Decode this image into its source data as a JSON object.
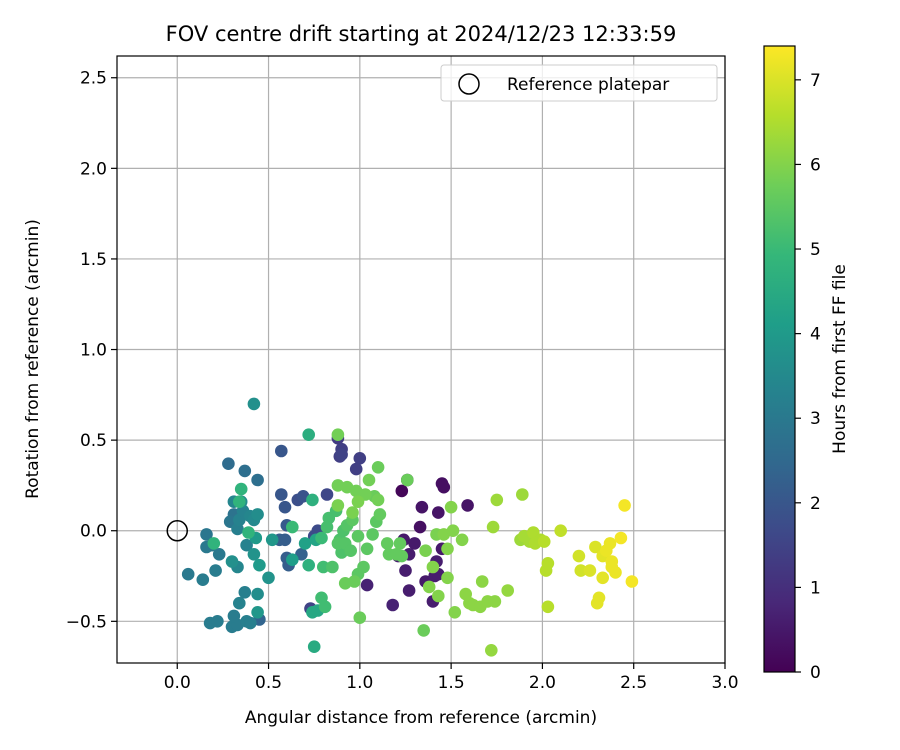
{
  "chart_data": {
    "type": "scatter",
    "title": "FOV centre drift starting at 2024/12/23 12:33:59",
    "xlabel": "Angular distance from reference (arcmin)",
    "ylabel": "Rotation from reference (arcmin)",
    "xlim": [
      -0.33,
      3.0
    ],
    "ylim": [
      -0.73,
      2.62
    ],
    "x_ticks": [
      0.0,
      0.5,
      1.0,
      1.5,
      2.0,
      2.5,
      3.0
    ],
    "x_tick_labels": [
      "0.0",
      "0.5",
      "1.0",
      "1.5",
      "2.0",
      "2.5",
      "3.0"
    ],
    "y_ticks": [
      -0.5,
      0.0,
      0.5,
      1.0,
      1.5,
      2.0,
      2.5
    ],
    "y_tick_labels": [
      "−0.5",
      "0.0",
      "0.5",
      "1.0",
      "1.5",
      "2.0",
      "2.5"
    ],
    "grid": true,
    "legend": {
      "placement": "upper-right",
      "entries": [
        "Reference platepar"
      ]
    },
    "reference_point": {
      "x": 0.0,
      "y": 0.0
    },
    "colorbar": {
      "label": "Hours from first FF file",
      "range": [
        0,
        7.4
      ],
      "ticks": [
        0,
        1,
        2,
        3,
        4,
        5,
        6,
        7
      ],
      "tick_labels": [
        "0",
        "1",
        "2",
        "3",
        "4",
        "5",
        "6",
        "7"
      ],
      "colormap": "viridis",
      "colors": [
        "#440154",
        "#482878",
        "#3e4989",
        "#31688e",
        "#26828e",
        "#1f9e89",
        "#35b779",
        "#6ece58",
        "#b5de2b",
        "#fde725"
      ]
    },
    "points": [
      {
        "x": 1.23,
        "y": 0.22,
        "t": 0.1
      },
      {
        "x": 1.26,
        "y": 0.28,
        "t": 0.2
      },
      {
        "x": 1.45,
        "y": 0.26,
        "t": 0.3
      },
      {
        "x": 1.46,
        "y": 0.24,
        "t": 0.3
      },
      {
        "x": 1.34,
        "y": 0.13,
        "t": 0.4
      },
      {
        "x": 1.43,
        "y": 0.1,
        "t": 0.4
      },
      {
        "x": 1.59,
        "y": 0.14,
        "t": 0.4
      },
      {
        "x": 1.33,
        "y": 0.02,
        "t": 0.3
      },
      {
        "x": 1.24,
        "y": -0.05,
        "t": 0.5
      },
      {
        "x": 1.3,
        "y": -0.07,
        "t": 0.5
      },
      {
        "x": 1.27,
        "y": -0.13,
        "t": 0.6
      },
      {
        "x": 1.21,
        "y": -0.14,
        "t": 0.6
      },
      {
        "x": 1.25,
        "y": -0.22,
        "t": 0.6
      },
      {
        "x": 1.36,
        "y": -0.28,
        "t": 0.5
      },
      {
        "x": 1.41,
        "y": -0.25,
        "t": 0.6
      },
      {
        "x": 1.27,
        "y": -0.33,
        "t": 0.6
      },
      {
        "x": 1.4,
        "y": -0.39,
        "t": 0.6
      },
      {
        "x": 1.18,
        "y": -0.41,
        "t": 0.7
      },
      {
        "x": 1.04,
        "y": -0.3,
        "t": 0.7
      },
      {
        "x": 1.43,
        "y": -0.24,
        "t": 0.6
      },
      {
        "x": 1.45,
        "y": -0.1,
        "t": 0.5
      },
      {
        "x": 1.42,
        "y": -0.17,
        "t": 0.6
      },
      {
        "x": 1.0,
        "y": 0.4,
        "t": 1.4
      },
      {
        "x": 0.98,
        "y": 0.34,
        "t": 1.4
      },
      {
        "x": 0.88,
        "y": 0.51,
        "t": 1.3
      },
      {
        "x": 0.9,
        "y": 0.45,
        "t": 1.4
      },
      {
        "x": 0.89,
        "y": 0.41,
        "t": 1.4
      },
      {
        "x": 0.9,
        "y": 0.42,
        "t": 1.5
      },
      {
        "x": 0.73,
        "y": -0.43,
        "t": 1.5
      },
      {
        "x": 0.82,
        "y": 0.2,
        "t": 1.6
      },
      {
        "x": 0.77,
        "y": 0.0,
        "t": 1.7
      },
      {
        "x": 0.75,
        "y": -0.03,
        "t": 1.7
      },
      {
        "x": 0.57,
        "y": 0.44,
        "t": 2.0
      },
      {
        "x": 0.57,
        "y": 0.2,
        "t": 2.0
      },
      {
        "x": 0.66,
        "y": 0.17,
        "t": 1.8
      },
      {
        "x": 0.69,
        "y": 0.19,
        "t": 1.9
      },
      {
        "x": 0.59,
        "y": 0.13,
        "t": 2.0
      },
      {
        "x": 0.6,
        "y": 0.03,
        "t": 2.1
      },
      {
        "x": 0.56,
        "y": -0.05,
        "t": 2.2
      },
      {
        "x": 0.59,
        "y": -0.05,
        "t": 2.2
      },
      {
        "x": 0.6,
        "y": -0.15,
        "t": 2.2
      },
      {
        "x": 0.61,
        "y": -0.19,
        "t": 2.2
      },
      {
        "x": 0.68,
        "y": -0.13,
        "t": 2.3
      },
      {
        "x": 0.45,
        "y": -0.49,
        "t": 2.4
      },
      {
        "x": 0.28,
        "y": 0.37,
        "t": 2.6
      },
      {
        "x": 0.37,
        "y": 0.33,
        "t": 2.7
      },
      {
        "x": 0.44,
        "y": 0.28,
        "t": 2.7
      },
      {
        "x": 0.31,
        "y": 0.09,
        "t": 2.8
      },
      {
        "x": 0.29,
        "y": 0.05,
        "t": 2.9
      },
      {
        "x": 0.16,
        "y": -0.02,
        "t": 2.9
      },
      {
        "x": 0.23,
        "y": -0.13,
        "t": 3.0
      },
      {
        "x": 0.19,
        "y": -0.08,
        "t": 3.0
      },
      {
        "x": 0.16,
        "y": -0.09,
        "t": 3.0
      },
      {
        "x": 0.06,
        "y": -0.24,
        "t": 3.0
      },
      {
        "x": 0.14,
        "y": -0.27,
        "t": 3.1
      },
      {
        "x": 0.21,
        "y": -0.22,
        "t": 3.1
      },
      {
        "x": 0.18,
        "y": -0.51,
        "t": 3.1
      },
      {
        "x": 0.22,
        "y": -0.5,
        "t": 3.1
      },
      {
        "x": 0.3,
        "y": -0.53,
        "t": 3.1
      },
      {
        "x": 0.33,
        "y": -0.52,
        "t": 3.1
      },
      {
        "x": 0.31,
        "y": -0.47,
        "t": 3.1
      },
      {
        "x": 0.38,
        "y": -0.5,
        "t": 3.2
      },
      {
        "x": 0.4,
        "y": -0.51,
        "t": 3.2
      },
      {
        "x": 0.34,
        "y": -0.4,
        "t": 3.3
      },
      {
        "x": 0.37,
        "y": -0.34,
        "t": 3.2
      },
      {
        "x": 0.33,
        "y": 0.01,
        "t": 3.2
      },
      {
        "x": 0.34,
        "y": 0.06,
        "t": 3.3
      },
      {
        "x": 0.38,
        "y": -0.08,
        "t": 3.3
      },
      {
        "x": 0.33,
        "y": -0.2,
        "t": 3.4
      },
      {
        "x": 0.36,
        "y": 0.11,
        "t": 3.3
      },
      {
        "x": 0.31,
        "y": 0.16,
        "t": 3.4
      },
      {
        "x": 0.4,
        "y": 0.08,
        "t": 3.4
      },
      {
        "x": 0.42,
        "y": 0.06,
        "t": 3.5
      },
      {
        "x": 0.44,
        "y": 0.09,
        "t": 3.6
      },
      {
        "x": 0.35,
        "y": 0.16,
        "t": 3.6
      },
      {
        "x": 0.44,
        "y": -0.35,
        "t": 3.6
      },
      {
        "x": 0.42,
        "y": 0.7,
        "t": 3.7
      },
      {
        "x": 0.3,
        "y": -0.17,
        "t": 3.7
      },
      {
        "x": 0.42,
        "y": -0.13,
        "t": 3.8
      },
      {
        "x": 0.5,
        "y": -0.26,
        "t": 3.8
      },
      {
        "x": 0.44,
        "y": -0.45,
        "t": 3.9
      },
      {
        "x": 0.52,
        "y": -0.05,
        "t": 3.9
      },
      {
        "x": 0.43,
        "y": -0.04,
        "t": 4.0
      },
      {
        "x": 0.45,
        "y": -0.19,
        "t": 4.0
      },
      {
        "x": 0.63,
        "y": -0.16,
        "t": 4.1
      },
      {
        "x": 0.7,
        "y": -0.07,
        "t": 4.2
      },
      {
        "x": 0.76,
        "y": -0.05,
        "t": 4.3
      },
      {
        "x": 0.74,
        "y": -0.45,
        "t": 4.4
      },
      {
        "x": 0.77,
        "y": -0.44,
        "t": 4.4
      },
      {
        "x": 0.75,
        "y": -0.64,
        "t": 4.5
      },
      {
        "x": 0.72,
        "y": 0.53,
        "t": 4.6
      },
      {
        "x": 0.72,
        "y": -0.19,
        "t": 4.7
      },
      {
        "x": 0.74,
        "y": 0.17,
        "t": 4.7
      },
      {
        "x": 0.35,
        "y": 0.23,
        "t": 4.8
      },
      {
        "x": 0.34,
        "y": 0.16,
        "t": 4.8
      },
      {
        "x": 0.39,
        "y": -0.01,
        "t": 4.8
      },
      {
        "x": 0.2,
        "y": -0.07,
        "t": 4.8
      },
      {
        "x": 0.63,
        "y": 0.02,
        "t": 5.0
      },
      {
        "x": 0.79,
        "y": -0.04,
        "t": 5.0
      },
      {
        "x": 0.81,
        "y": -0.42,
        "t": 5.1
      },
      {
        "x": 0.79,
        "y": -0.37,
        "t": 5.1
      },
      {
        "x": 0.8,
        "y": -0.2,
        "t": 5.1
      },
      {
        "x": 0.83,
        "y": 0.07,
        "t": 5.2
      },
      {
        "x": 0.82,
        "y": 0.02,
        "t": 5.2
      },
      {
        "x": 0.87,
        "y": 0.11,
        "t": 5.2
      },
      {
        "x": 0.9,
        "y": -0.12,
        "t": 5.3
      },
      {
        "x": 0.89,
        "y": -0.05,
        "t": 5.3
      },
      {
        "x": 0.91,
        "y": 0.0,
        "t": 5.3
      },
      {
        "x": 0.85,
        "y": -0.2,
        "t": 5.3
      },
      {
        "x": 0.88,
        "y": -0.07,
        "t": 5.4
      },
      {
        "x": 0.92,
        "y": -0.07,
        "t": 5.4
      },
      {
        "x": 0.93,
        "y": 0.03,
        "t": 5.4
      },
      {
        "x": 0.95,
        "y": -0.11,
        "t": 5.4
      },
      {
        "x": 0.96,
        "y": 0.06,
        "t": 5.5
      },
      {
        "x": 0.99,
        "y": -0.03,
        "t": 5.5
      },
      {
        "x": 0.99,
        "y": -0.24,
        "t": 5.5
      },
      {
        "x": 1.02,
        "y": -0.2,
        "t": 5.5
      },
      {
        "x": 1.04,
        "y": -0.1,
        "t": 5.5
      },
      {
        "x": 1.07,
        "y": -0.02,
        "t": 5.5
      },
      {
        "x": 1.09,
        "y": 0.05,
        "t": 5.5
      },
      {
        "x": 1.11,
        "y": 0.09,
        "t": 5.6
      },
      {
        "x": 1.15,
        "y": -0.07,
        "t": 5.6
      },
      {
        "x": 1.16,
        "y": -0.13,
        "t": 5.6
      },
      {
        "x": 1.2,
        "y": -0.13,
        "t": 5.6
      },
      {
        "x": 1.22,
        "y": -0.07,
        "t": 5.6
      },
      {
        "x": 1.23,
        "y": -0.14,
        "t": 5.6
      },
      {
        "x": 1.26,
        "y": 0.28,
        "t": 5.7
      },
      {
        "x": 1.35,
        "y": -0.55,
        "t": 5.7
      },
      {
        "x": 1.0,
        "y": -0.48,
        "t": 5.7
      },
      {
        "x": 0.97,
        "y": -0.28,
        "t": 5.7
      },
      {
        "x": 0.92,
        "y": -0.29,
        "t": 5.7
      },
      {
        "x": 1.1,
        "y": 0.35,
        "t": 5.7
      },
      {
        "x": 1.08,
        "y": 0.19,
        "t": 5.7
      },
      {
        "x": 1.1,
        "y": 0.17,
        "t": 5.8
      },
      {
        "x": 1.05,
        "y": 0.28,
        "t": 5.8
      },
      {
        "x": 1.03,
        "y": 0.2,
        "t": 5.8
      },
      {
        "x": 0.98,
        "y": 0.22,
        "t": 5.8
      },
      {
        "x": 0.93,
        "y": 0.24,
        "t": 5.8
      },
      {
        "x": 0.88,
        "y": 0.25,
        "t": 5.8
      },
      {
        "x": 0.88,
        "y": 0.53,
        "t": 5.8
      },
      {
        "x": 0.88,
        "y": 0.14,
        "t": 5.9
      },
      {
        "x": 0.96,
        "y": 0.1,
        "t": 5.9
      },
      {
        "x": 0.99,
        "y": 0.16,
        "t": 5.9
      },
      {
        "x": 1.42,
        "y": -0.02,
        "t": 5.9
      },
      {
        "x": 1.36,
        "y": -0.11,
        "t": 5.9
      },
      {
        "x": 1.48,
        "y": -0.1,
        "t": 6.0
      },
      {
        "x": 1.46,
        "y": -0.02,
        "t": 6.0
      },
      {
        "x": 1.51,
        "y": 0.0,
        "t": 6.0
      },
      {
        "x": 1.5,
        "y": 0.13,
        "t": 6.0
      },
      {
        "x": 1.56,
        "y": -0.05,
        "t": 6.0
      },
      {
        "x": 1.48,
        "y": -0.26,
        "t": 6.0
      },
      {
        "x": 1.4,
        "y": -0.2,
        "t": 6.0
      },
      {
        "x": 1.38,
        "y": -0.31,
        "t": 6.0
      },
      {
        "x": 1.43,
        "y": -0.36,
        "t": 6.0
      },
      {
        "x": 1.52,
        "y": -0.45,
        "t": 6.0
      },
      {
        "x": 1.58,
        "y": -0.35,
        "t": 6.1
      },
      {
        "x": 1.6,
        "y": -0.4,
        "t": 6.1
      },
      {
        "x": 1.62,
        "y": -0.41,
        "t": 6.1
      },
      {
        "x": 1.66,
        "y": -0.42,
        "t": 6.1
      },
      {
        "x": 1.7,
        "y": -0.39,
        "t": 6.1
      },
      {
        "x": 1.74,
        "y": -0.39,
        "t": 6.1
      },
      {
        "x": 1.67,
        "y": -0.28,
        "t": 6.1
      },
      {
        "x": 1.72,
        "y": -0.66,
        "t": 6.2
      },
      {
        "x": 1.81,
        "y": -0.33,
        "t": 6.2
      },
      {
        "x": 1.75,
        "y": 0.17,
        "t": 6.3
      },
      {
        "x": 1.73,
        "y": 0.02,
        "t": 6.3
      },
      {
        "x": 1.89,
        "y": 0.2,
        "t": 6.3
      },
      {
        "x": 1.88,
        "y": -0.05,
        "t": 6.3
      },
      {
        "x": 1.9,
        "y": -0.03,
        "t": 6.4
      },
      {
        "x": 1.93,
        "y": -0.06,
        "t": 6.4
      },
      {
        "x": 1.95,
        "y": -0.01,
        "t": 6.5
      },
      {
        "x": 1.96,
        "y": -0.07,
        "t": 6.5
      },
      {
        "x": 1.99,
        "y": -0.05,
        "t": 6.5
      },
      {
        "x": 2.01,
        "y": -0.06,
        "t": 6.6
      },
      {
        "x": 2.02,
        "y": -0.22,
        "t": 6.6
      },
      {
        "x": 2.03,
        "y": -0.18,
        "t": 6.6
      },
      {
        "x": 2.03,
        "y": -0.42,
        "t": 6.6
      },
      {
        "x": 2.1,
        "y": 0.0,
        "t": 6.7
      },
      {
        "x": 2.2,
        "y": -0.14,
        "t": 6.9
      },
      {
        "x": 2.21,
        "y": -0.22,
        "t": 6.9
      },
      {
        "x": 2.26,
        "y": -0.22,
        "t": 7.0
      },
      {
        "x": 2.29,
        "y": -0.09,
        "t": 7.0
      },
      {
        "x": 2.31,
        "y": -0.37,
        "t": 7.1
      },
      {
        "x": 2.3,
        "y": -0.4,
        "t": 7.1
      },
      {
        "x": 2.33,
        "y": -0.26,
        "t": 7.1
      },
      {
        "x": 2.33,
        "y": -0.14,
        "t": 7.1
      },
      {
        "x": 2.35,
        "y": -0.11,
        "t": 7.2
      },
      {
        "x": 2.37,
        "y": -0.07,
        "t": 7.2
      },
      {
        "x": 2.38,
        "y": -0.17,
        "t": 7.2
      },
      {
        "x": 2.38,
        "y": -0.2,
        "t": 7.2
      },
      {
        "x": 2.4,
        "y": -0.23,
        "t": 7.2
      },
      {
        "x": 2.43,
        "y": -0.04,
        "t": 7.3
      },
      {
        "x": 2.45,
        "y": 0.14,
        "t": 7.3
      },
      {
        "x": 2.49,
        "y": -0.28,
        "t": 7.3
      }
    ]
  }
}
